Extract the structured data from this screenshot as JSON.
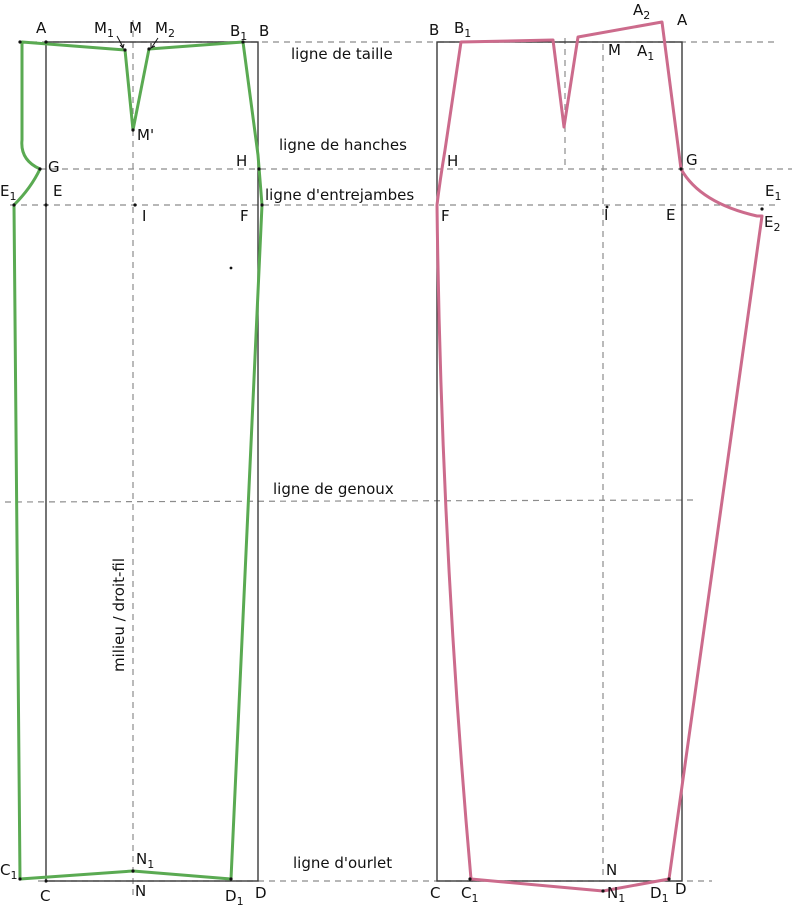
{
  "colors": {
    "front_pattern": "#5aaa52",
    "back_pattern": "#cc6b8c",
    "guide_dash": "#8c8c8c",
    "frame": "#3a3a3a",
    "text": "#111111"
  },
  "guide_labels": {
    "waist": "ligne de taille",
    "hips": "ligne de hanches",
    "crotch": "ligne d'entrejambes",
    "knee": "ligne de genoux",
    "hem": "ligne d'ourlet",
    "grain": "milieu / droit-fil"
  },
  "front_points": {
    "A": "A",
    "M1": {
      "base": "M",
      "sub": "1"
    },
    "M": "M",
    "M2": {
      "base": "M",
      "sub": "2"
    },
    "B1": {
      "base": "B",
      "sub": "1"
    },
    "B": "B",
    "M_prime": "M'",
    "G": "G",
    "H": "H",
    "E1": {
      "base": "E",
      "sub": "1"
    },
    "E": "E",
    "I": "I",
    "F": "F",
    "C1": {
      "base": "C",
      "sub": "1"
    },
    "N1": {
      "base": "N",
      "sub": "1"
    },
    "C": "C",
    "N": "N",
    "D1": {
      "base": "D",
      "sub": "1"
    },
    "D": "D"
  },
  "back_points": {
    "A2": {
      "base": "A",
      "sub": "2"
    },
    "A": "A",
    "B": "B",
    "B1": {
      "base": "B",
      "sub": "1"
    },
    "M": "M",
    "A1": {
      "base": "A",
      "sub": "1"
    },
    "H": "H",
    "G": "G",
    "E1": {
      "base": "E",
      "sub": "1"
    },
    "F": "F",
    "I": "I",
    "E": "E",
    "E2": {
      "base": "E",
      "sub": "2"
    },
    "N": "N",
    "C": "C",
    "C1": {
      "base": "C",
      "sub": "1"
    },
    "N1": {
      "base": "N",
      "sub": "1"
    },
    "D1": {
      "base": "D",
      "sub": "1"
    },
    "D": "D"
  }
}
